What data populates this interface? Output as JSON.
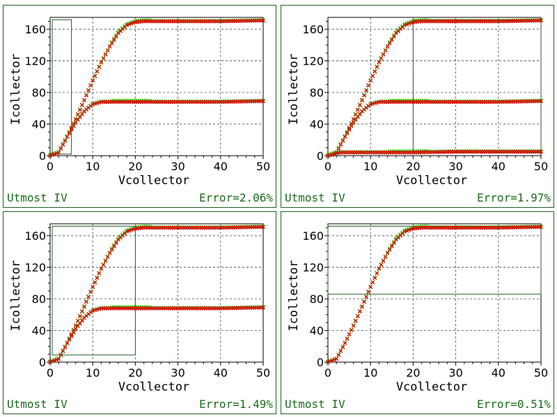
{
  "colors": {
    "measured": "#33cc00",
    "simulated": "#dd0000",
    "frame": "#1f5f1f",
    "text": "#1a6b1a"
  },
  "chart_data": [
    {
      "type": "scatter",
      "xlabel": "Vcollector",
      "ylabel": "Icollector",
      "xlim": [
        0,
        50
      ],
      "ylim": [
        0,
        175
      ],
      "xticks": [
        "0",
        "10",
        "20",
        "30",
        "40",
        "50"
      ],
      "yticks": [
        "0",
        "40",
        "80",
        "120",
        "160"
      ],
      "grid": true,
      "software": "Utmost IV",
      "error": "Error=2.06%",
      "window": {
        "x": [
          0.5,
          5
        ],
        "y": [
          2,
          172
        ]
      },
      "series": [
        {
          "x": [
            0,
            2,
            4,
            6,
            8,
            10,
            12,
            14,
            16,
            18,
            20,
            22,
            24,
            30,
            40,
            50
          ],
          "y": [
            0,
            4,
            24,
            46,
            70,
            95,
            118,
            138,
            155,
            165,
            169,
            170,
            170,
            170,
            170,
            171
          ]
        },
        {
          "x": [
            0,
            2,
            4,
            6,
            8,
            10,
            12,
            14,
            16,
            20,
            30,
            40,
            50
          ],
          "y": [
            0,
            4,
            24,
            42,
            56,
            65,
            68,
            68,
            68,
            68,
            68,
            68,
            69
          ]
        }
      ]
    },
    {
      "type": "scatter",
      "xlabel": "Vcollector",
      "ylabel": "Icollector",
      "xlim": [
        0,
        50
      ],
      "ylim": [
        0,
        175
      ],
      "xticks": [
        "0",
        "10",
        "20",
        "30",
        "40",
        "50"
      ],
      "yticks": [
        "0",
        "40",
        "80",
        "120",
        "160"
      ],
      "grid": true,
      "software": "Utmost IV",
      "error": "Error=1.97%",
      "window": {
        "x": [
          20,
          50
        ],
        "y": [
          4,
          172
        ]
      },
      "series": [
        {
          "x": [
            0,
            2,
            4,
            6,
            8,
            10,
            12,
            14,
            16,
            18,
            20,
            22,
            24,
            30,
            40,
            50
          ],
          "y": [
            0,
            4,
            24,
            46,
            70,
            95,
            118,
            138,
            155,
            165,
            169,
            170,
            170,
            170,
            170,
            171
          ]
        },
        {
          "x": [
            0,
            2,
            4,
            6,
            8,
            10,
            12,
            14,
            16,
            20,
            30,
            40,
            50
          ],
          "y": [
            0,
            4,
            24,
            42,
            56,
            65,
            68,
            68,
            68,
            68,
            68,
            68,
            69
          ]
        },
        {
          "x": [
            0,
            1,
            2,
            3,
            5,
            10,
            20,
            30,
            40,
            50
          ],
          "y": [
            0,
            1,
            3,
            4,
            4,
            4,
            4,
            5,
            5,
            5
          ]
        }
      ]
    },
    {
      "type": "scatter",
      "xlabel": "Vcollector",
      "ylabel": "Icollector",
      "xlim": [
        0,
        50
      ],
      "ylim": [
        0,
        175
      ],
      "xticks": [
        "0",
        "10",
        "20",
        "30",
        "40",
        "50"
      ],
      "yticks": [
        "0",
        "40",
        "80",
        "120",
        "160"
      ],
      "grid": true,
      "software": "Utmost IV",
      "error": "Error=1.49%",
      "window": {
        "x": [
          0.5,
          20
        ],
        "y": [
          9,
          172
        ]
      },
      "series": [
        {
          "x": [
            0,
            2,
            4,
            6,
            8,
            10,
            12,
            14,
            16,
            18,
            20,
            22,
            24,
            30,
            40,
            50
          ],
          "y": [
            0,
            4,
            24,
            46,
            70,
            95,
            118,
            138,
            155,
            165,
            169,
            170,
            170,
            170,
            170,
            171
          ]
        },
        {
          "x": [
            0,
            2,
            4,
            6,
            8,
            10,
            12,
            14,
            16,
            20,
            30,
            40,
            50
          ],
          "y": [
            0,
            4,
            24,
            42,
            56,
            65,
            68,
            68,
            68,
            68,
            68,
            68,
            69
          ]
        }
      ]
    },
    {
      "type": "scatter",
      "xlabel": "Vcollector",
      "ylabel": "Icollector",
      "xlim": [
        0,
        50
      ],
      "ylim": [
        0,
        175
      ],
      "xticks": [
        "0",
        "10",
        "20",
        "30",
        "40",
        "50"
      ],
      "yticks": [
        "0",
        "40",
        "80",
        "120",
        "160"
      ],
      "grid": true,
      "software": "Utmost IV",
      "error": "Error=0.51%",
      "window": {
        "x": [
          0,
          50
        ],
        "y": [
          86,
          172
        ]
      },
      "series": [
        {
          "x": [
            0,
            2,
            4,
            6,
            8,
            10,
            12,
            14,
            16,
            18,
            20,
            22,
            24,
            30,
            40,
            50
          ],
          "y": [
            0,
            4,
            24,
            46,
            70,
            95,
            118,
            138,
            155,
            165,
            169,
            170,
            170,
            170,
            170,
            171
          ]
        }
      ]
    }
  ]
}
